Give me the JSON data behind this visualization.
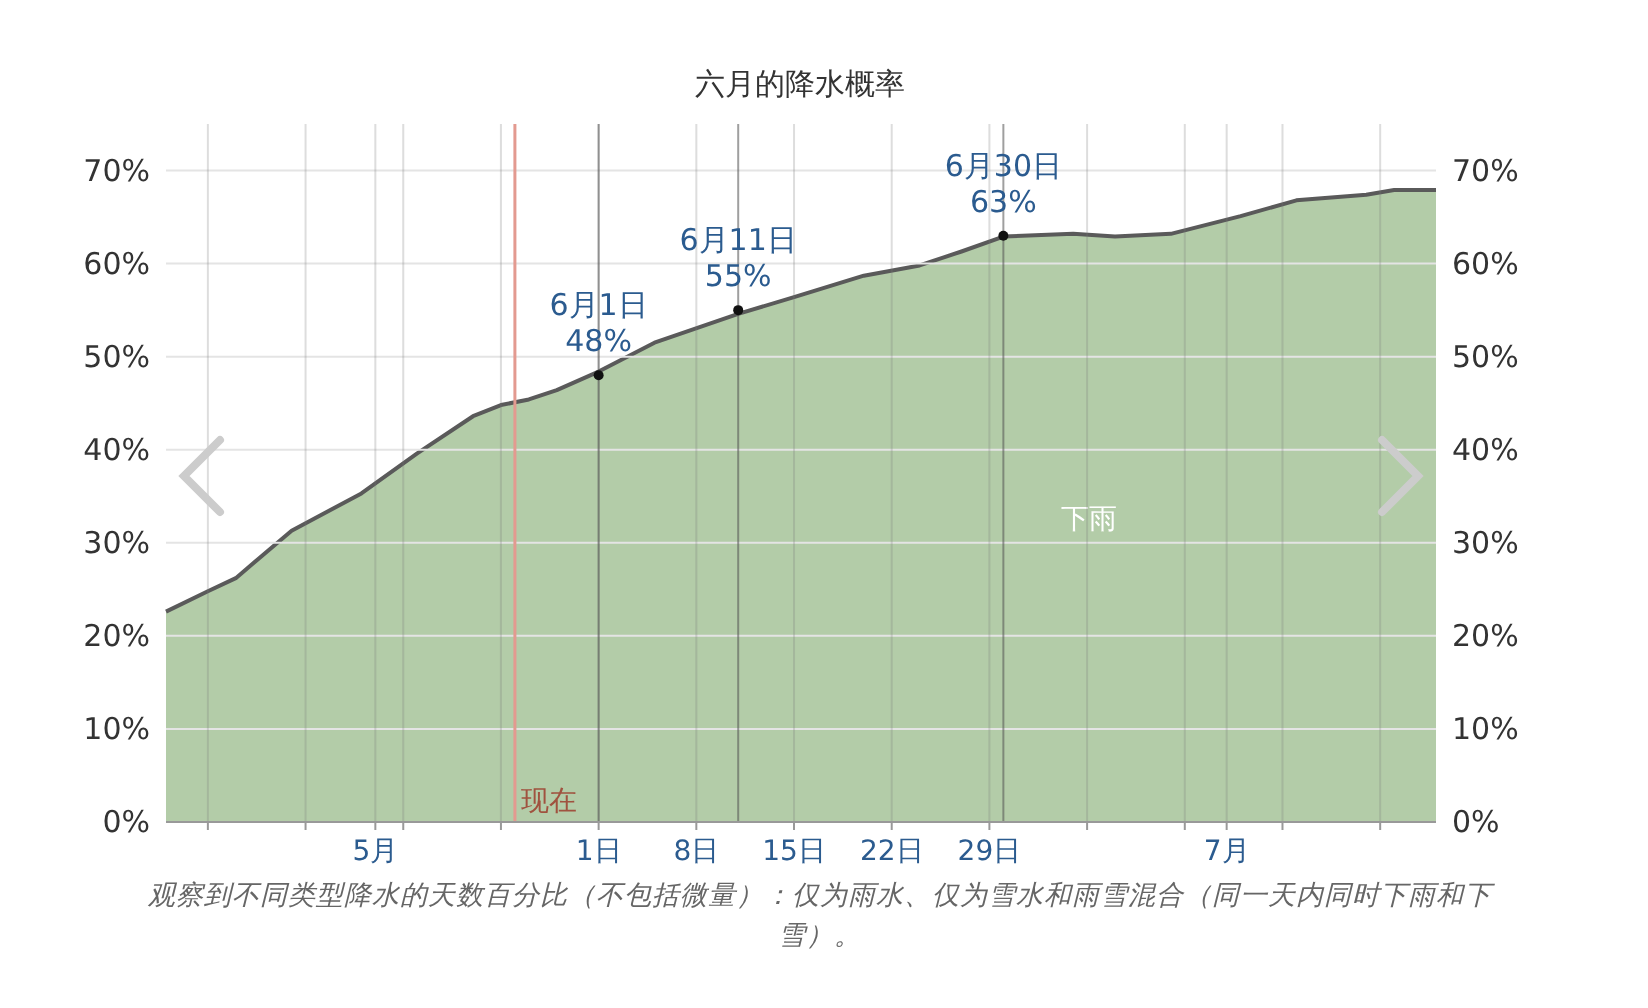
{
  "chart_data": {
    "type": "area",
    "title": "六月的降水概率",
    "x": [
      "--05-01",
      "--05-04",
      "--05-06",
      "--05-10",
      "--05-15",
      "--05-19",
      "--05-23",
      "--05-25",
      "--05-27",
      "--05-29",
      "--06-01",
      "--06-05",
      "--06-11",
      "--06-15",
      "--06-20",
      "--06-24",
      "--06-27",
      "--06-30",
      "--07-05",
      "--07-08",
      "--07-12",
      "--07-17",
      "--07-21",
      "--07-26",
      "--07-28",
      "--07-31"
    ],
    "series": [
      {
        "name": "下雨",
        "color": "#b3cca8",
        "values": [
          22.6,
          24.8,
          26.2,
          31.3,
          35.3,
          39.6,
          43.6,
          44.8,
          45.4,
          46.4,
          48.4,
          51.5,
          54.6,
          56.4,
          58.7,
          59.8,
          61.3,
          62.9,
          63.2,
          62.9,
          63.2,
          65.1,
          66.8,
          67.4,
          67.9,
          67.9
        ]
      }
    ],
    "xlim": [
      "--05-01",
      "--07-31"
    ],
    "xticks": [
      {
        "value": "--05-04",
        "label": null
      },
      {
        "value": "--05-11",
        "label": null
      },
      {
        "value": "--05-16",
        "label": "5月"
      },
      {
        "value": "--05-18",
        "label": null
      },
      {
        "value": "--05-25",
        "label": null
      },
      {
        "value": "--06-01",
        "label": "1日"
      },
      {
        "value": "--06-08",
        "label": "8日"
      },
      {
        "value": "--06-15",
        "label": "15日"
      },
      {
        "value": "--06-22",
        "label": "22日"
      },
      {
        "value": "--06-29",
        "label": "29日"
      },
      {
        "value": "--07-06",
        "label": null
      },
      {
        "value": "--07-13",
        "label": null
      },
      {
        "value": "--07-16",
        "label": "7月"
      },
      {
        "value": "--07-20",
        "label": null
      },
      {
        "value": "--07-27",
        "label": null
      }
    ],
    "ylim": [
      0,
      75
    ],
    "yticks": [
      {
        "value": 0,
        "label": "0%"
      },
      {
        "value": 10,
        "label": "10%"
      },
      {
        "value": 20,
        "label": "20%"
      },
      {
        "value": 30,
        "label": "30%"
      },
      {
        "value": 40,
        "label": "40%"
      },
      {
        "value": 50,
        "label": "50%"
      },
      {
        "value": 60,
        "label": "60%"
      },
      {
        "value": 70,
        "label": "70%"
      }
    ],
    "y2lim": [
      0,
      75
    ],
    "y2ticks": [
      {
        "value": 0,
        "label": "0%"
      },
      {
        "value": 10,
        "label": "10%"
      },
      {
        "value": 20,
        "label": "20%"
      },
      {
        "value": 30,
        "label": "30%"
      },
      {
        "value": 40,
        "label": "40%"
      },
      {
        "value": 50,
        "label": "50%"
      },
      {
        "value": 60,
        "label": "60%"
      },
      {
        "value": 70,
        "label": "70%"
      }
    ],
    "grid": true,
    "ref_lines": [
      {
        "axis": "x",
        "value": "--05-26",
        "label": "现在",
        "color": "#e39a90"
      }
    ],
    "annotations": [
      {
        "text": "6月1日\n48%",
        "x": "--06-01",
        "y": 48
      },
      {
        "text": "6月11日\n55%",
        "x": "--06-11",
        "y": 55
      },
      {
        "text": "6月30日\n63%",
        "x": "--06-30",
        "y": 63
      },
      "观察到不同类型降水的天数百分比（不包括微量）：仅为雨水、仅为雪水和雨雪混合（同一天内同时下雨和下雪）。"
    ]
  }
}
